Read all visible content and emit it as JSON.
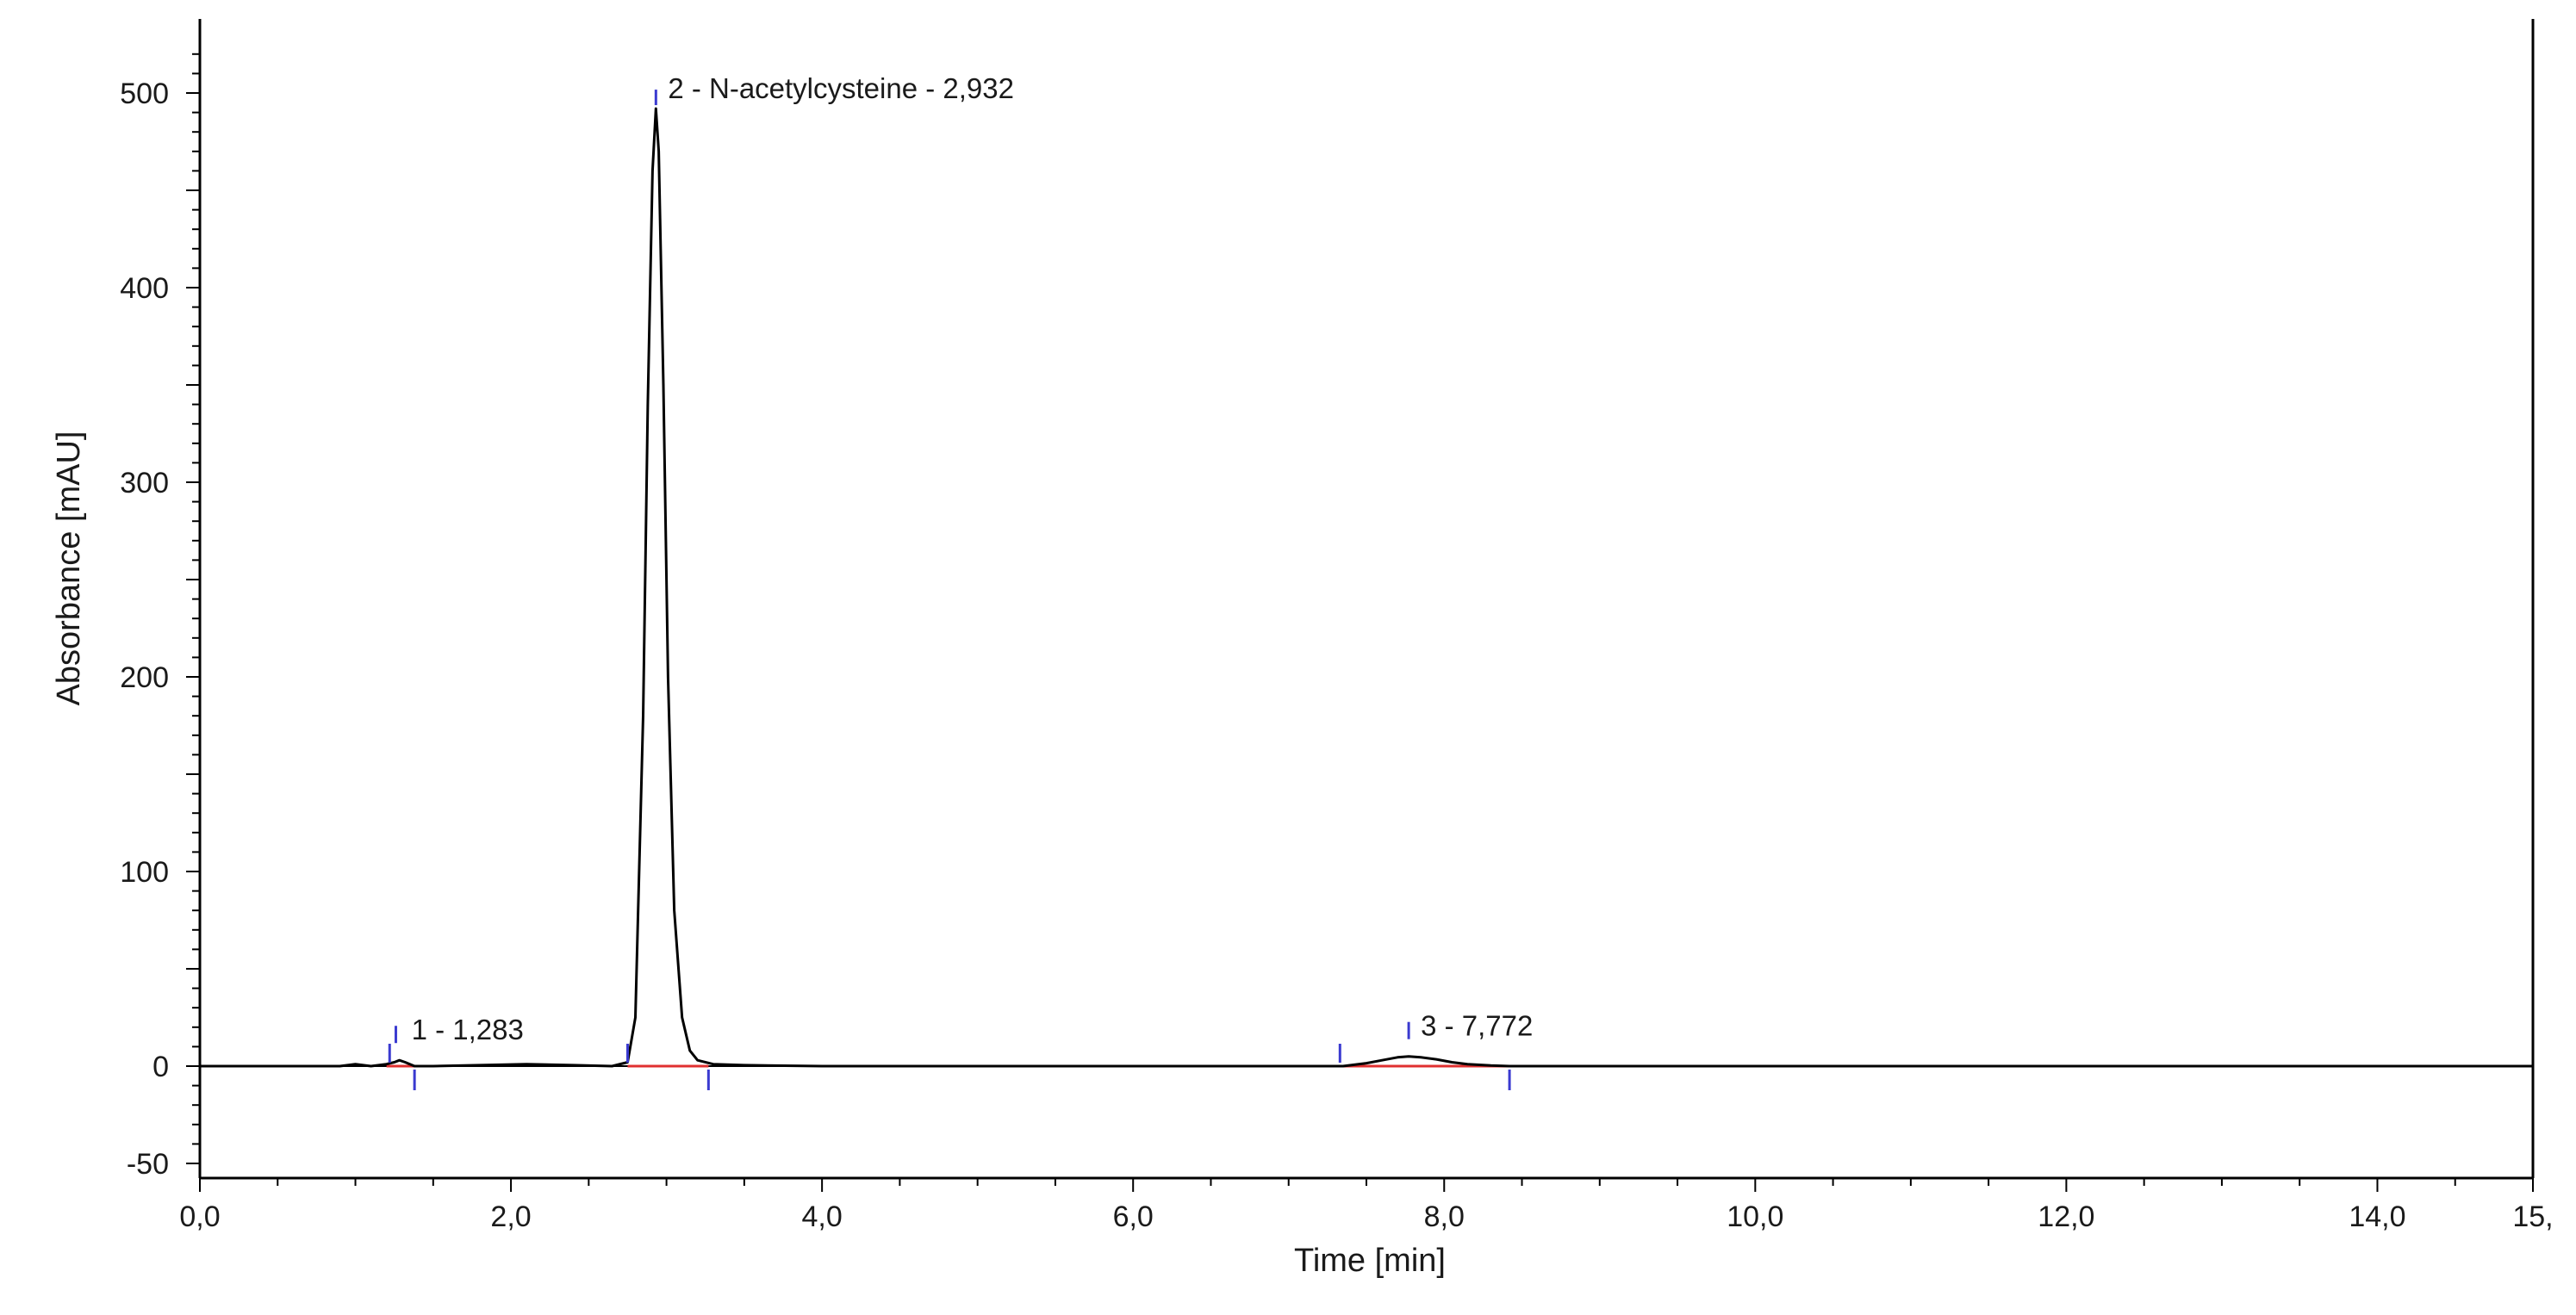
{
  "chart_data": {
    "type": "line",
    "title": "",
    "xlabel": "Time [min]",
    "ylabel": "Absorbance [mAU]",
    "xlim": [
      0,
      15
    ],
    "ylim": [
      -50,
      530
    ],
    "x_ticks": [
      0,
      2,
      4,
      6,
      8,
      10,
      12,
      14,
      15
    ],
    "x_tick_labels": [
      "0,0",
      "2,0",
      "4,0",
      "6,0",
      "8,0",
      "10,0",
      "12,0",
      "14,0",
      "15,"
    ],
    "y_ticks": [
      -50,
      0,
      100,
      200,
      300,
      400,
      500
    ],
    "y_tick_labels": [
      "-50",
      "0",
      "100",
      "200",
      "300",
      "400",
      "500"
    ],
    "grid": false,
    "series": [
      {
        "color": "#000000",
        "x": [
          0.0,
          0.5,
          0.9,
          1.0,
          1.1,
          1.2,
          1.25,
          1.283,
          1.32,
          1.38,
          1.5,
          1.8,
          2.1,
          2.4,
          2.65,
          2.75,
          2.8,
          2.85,
          2.88,
          2.91,
          2.932,
          2.95,
          2.98,
          3.01,
          3.05,
          3.1,
          3.15,
          3.2,
          3.3,
          3.5,
          4.0,
          5.0,
          6.0,
          7.0,
          7.35,
          7.5,
          7.6,
          7.7,
          7.772,
          7.85,
          7.95,
          8.05,
          8.15,
          8.3,
          8.42,
          9.0,
          10.0,
          12.0,
          14.0,
          15.0
        ],
        "y": [
          0,
          0,
          0,
          1,
          0,
          1,
          2,
          3,
          2,
          0,
          0,
          0.5,
          1,
          0.5,
          0,
          2,
          25,
          180,
          340,
          460,
          492,
          470,
          350,
          200,
          80,
          25,
          8,
          3,
          1,
          0.5,
          0,
          0,
          0,
          0,
          0,
          1.5,
          3,
          4.5,
          5,
          4.5,
          3.5,
          2,
          1,
          0.3,
          0,
          0,
          0,
          0,
          0,
          0
        ]
      }
    ],
    "baselines": [
      {
        "x": [
          1.2,
          1.38
        ],
        "color": "#e03030"
      },
      {
        "x": [
          2.75,
          3.27
        ],
        "color": "#e03030"
      },
      {
        "x": [
          7.33,
          8.42
        ],
        "color": "#e03030"
      }
    ],
    "peak_markers": [
      {
        "x": 1.22,
        "type": "start",
        "color": "#3a3ad0"
      },
      {
        "x": 1.26,
        "type": "apex",
        "color": "#3a3ad0"
      },
      {
        "x": 1.38,
        "type": "end",
        "color": "#3a3ad0"
      },
      {
        "x": 2.75,
        "type": "start",
        "color": "#3a3ad0"
      },
      {
        "x": 2.932,
        "type": "apex",
        "color": "#3a3ad0"
      },
      {
        "x": 3.27,
        "type": "end",
        "color": "#3a3ad0"
      },
      {
        "x": 7.33,
        "type": "start",
        "color": "#3a3ad0"
      },
      {
        "x": 7.772,
        "type": "apex",
        "color": "#3a3ad0"
      },
      {
        "x": 8.42,
        "type": "end",
        "color": "#3a3ad0"
      }
    ],
    "annotations": [
      {
        "text": "1 - 1,283",
        "x": 1.283,
        "y": 3
      },
      {
        "text": "2 - N-acetylcysteine - 2,932",
        "x": 2.932,
        "y": 492
      },
      {
        "text": "3 - 7,772",
        "x": 7.772,
        "y": 5
      }
    ]
  }
}
